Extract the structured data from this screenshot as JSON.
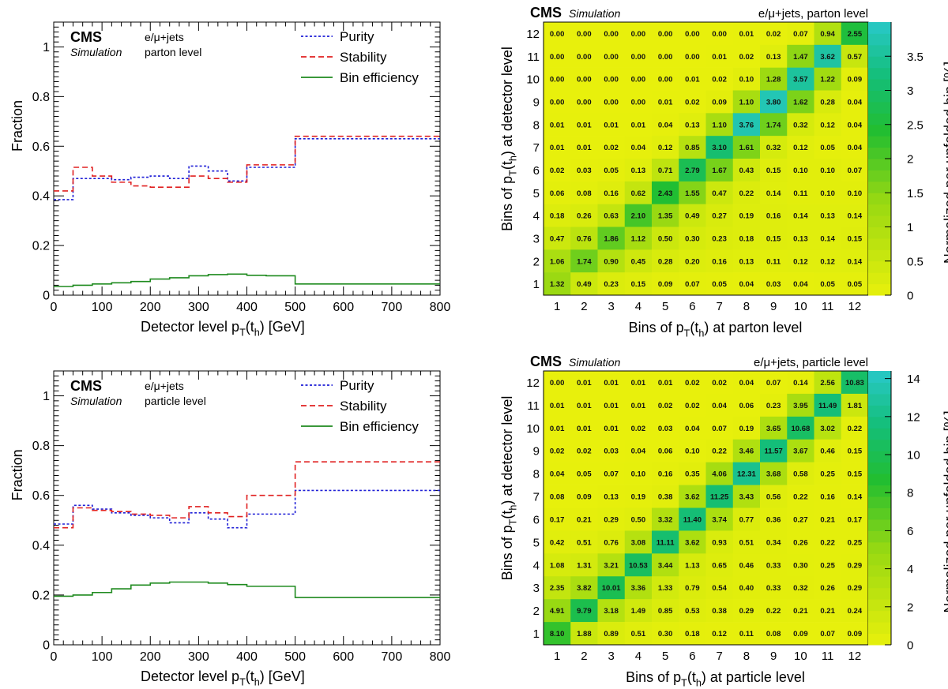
{
  "chart_data": [
    {
      "id": "p1",
      "type": "line",
      "cms_label": "CMS",
      "sim_label": "Simulation",
      "info_line1": "e/μ+jets",
      "info_line2": "parton level",
      "xlabel_main": "Detector level p",
      "xlabel_sub1": "T",
      "xlabel_mid": "(t",
      "xlabel_sub2": "h",
      "xlabel_end": ") [GeV]",
      "ylabel": "Fraction",
      "xlim": [
        0,
        800
      ],
      "ylim": [
        0,
        1.1
      ],
      "x_ticks": [
        "0",
        "100",
        "200",
        "300",
        "400",
        "500",
        "600",
        "700",
        "800"
      ],
      "y_ticks": [
        "0",
        "0.2",
        "0.4",
        "0.6",
        "0.8",
        "1"
      ],
      "bin_edges": [
        0,
        40,
        80,
        120,
        160,
        200,
        240,
        280,
        320,
        360,
        400,
        440,
        500,
        800
      ],
      "series": [
        {
          "name": "Purity",
          "color": "#1f1fd6",
          "dash": "3,2.5",
          "values": [
            0.385,
            0.47,
            0.47,
            0.465,
            0.475,
            0.48,
            0.47,
            0.52,
            0.5,
            0.46,
            0.515,
            0.515,
            0.63
          ]
        },
        {
          "name": "Stability",
          "color": "#e02020",
          "dash": "7,4",
          "values": [
            0.42,
            0.515,
            0.48,
            0.455,
            0.44,
            0.435,
            0.435,
            0.48,
            0.47,
            0.455,
            0.525,
            0.525,
            0.64
          ]
        },
        {
          "name": "Bin efficiency",
          "color": "#1e8a1e",
          "dash": "",
          "values": [
            0.035,
            0.04,
            0.045,
            0.05,
            0.055,
            0.065,
            0.07,
            0.078,
            0.083,
            0.085,
            0.08,
            0.078,
            0.045
          ]
        }
      ]
    },
    {
      "id": "p2",
      "type": "line",
      "cms_label": "CMS",
      "sim_label": "Simulation",
      "info_line1": "e/μ+jets",
      "info_line2": "particle level",
      "xlabel_main": "Detector level p",
      "xlabel_sub1": "T",
      "xlabel_mid": "(t",
      "xlabel_sub2": "h",
      "xlabel_end": ") [GeV]",
      "ylabel": "Fraction",
      "xlim": [
        0,
        800
      ],
      "ylim": [
        0,
        1.1
      ],
      "x_ticks": [
        "0",
        "100",
        "200",
        "300",
        "400",
        "500",
        "600",
        "700",
        "800"
      ],
      "y_ticks": [
        "0",
        "0.2",
        "0.4",
        "0.6",
        "0.8",
        "1"
      ],
      "bin_edges": [
        0,
        40,
        80,
        120,
        160,
        200,
        240,
        280,
        320,
        360,
        400,
        440,
        500,
        800
      ],
      "series": [
        {
          "name": "Purity",
          "color": "#1f1fd6",
          "dash": "3,2.5",
          "values": [
            0.485,
            0.56,
            0.545,
            0.53,
            0.52,
            0.51,
            0.49,
            0.53,
            0.505,
            0.47,
            0.525,
            0.525,
            0.62
          ]
        },
        {
          "name": "Stability",
          "color": "#e02020",
          "dash": "7,4",
          "values": [
            0.47,
            0.55,
            0.54,
            0.535,
            0.525,
            0.52,
            0.51,
            0.555,
            0.53,
            0.515,
            0.6,
            0.6,
            0.735
          ]
        },
        {
          "name": "Bin efficiency",
          "color": "#1e8a1e",
          "dash": "",
          "values": [
            0.195,
            0.2,
            0.21,
            0.225,
            0.24,
            0.248,
            0.252,
            0.252,
            0.248,
            0.242,
            0.235,
            0.235,
            0.19
          ]
        }
      ]
    },
    {
      "id": "h1",
      "type": "heatmap",
      "cms_label": "CMS",
      "sim_label": "Simulation",
      "info": "e/μ+jets, parton level",
      "xlabel_main": "Bins of p",
      "xlabel_sub1": "T",
      "xlabel_mid": "(t",
      "xlabel_sub2": "h",
      "xlabel_end": ") at parton level",
      "ylabel_main": "Bins of p",
      "ylabel_sub1": "T",
      "ylabel_mid": "(t",
      "ylabel_sub2": "h",
      "ylabel_end": ") at detector level",
      "zlabel": "Normalized per unfolded bin [%]",
      "zmax": 4.0,
      "z_ticks": [
        {
          "v": 0,
          "t": "0"
        },
        {
          "v": 0.5,
          "t": "0.5"
        },
        {
          "v": 1,
          "t": "1"
        },
        {
          "v": 1.5,
          "t": "1.5"
        },
        {
          "v": 2,
          "t": "2"
        },
        {
          "v": 2.5,
          "t": "2.5"
        },
        {
          "v": 3,
          "t": "3"
        },
        {
          "v": 3.5,
          "t": "3.5"
        }
      ],
      "bins": [
        "1",
        "2",
        "3",
        "4",
        "5",
        "6",
        "7",
        "8",
        "9",
        "10",
        "11",
        "12"
      ],
      "matrix_rows_top_to_bottom": [
        [
          "0.00",
          "0.00",
          "0.00",
          "0.00",
          "0.00",
          "0.00",
          "0.00",
          "0.01",
          "0.02",
          "0.07",
          "0.94",
          "2.55"
        ],
        [
          "0.00",
          "0.00",
          "0.00",
          "0.00",
          "0.00",
          "0.00",
          "0.01",
          "0.02",
          "0.13",
          "1.47",
          "3.62",
          "0.57"
        ],
        [
          "0.00",
          "0.00",
          "0.00",
          "0.00",
          "0.00",
          "0.01",
          "0.02",
          "0.10",
          "1.28",
          "3.57",
          "1.22",
          "0.09"
        ],
        [
          "0.00",
          "0.00",
          "0.00",
          "0.00",
          "0.01",
          "0.02",
          "0.09",
          "1.10",
          "3.80",
          "1.62",
          "0.28",
          "0.04"
        ],
        [
          "0.01",
          "0.01",
          "0.01",
          "0.01",
          "0.04",
          "0.13",
          "1.10",
          "3.76",
          "1.74",
          "0.32",
          "0.12",
          "0.04"
        ],
        [
          "0.01",
          "0.01",
          "0.02",
          "0.04",
          "0.12",
          "0.85",
          "3.10",
          "1.61",
          "0.32",
          "0.12",
          "0.05",
          "0.04"
        ],
        [
          "0.02",
          "0.03",
          "0.05",
          "0.13",
          "0.71",
          "2.79",
          "1.67",
          "0.43",
          "0.15",
          "0.10",
          "0.10",
          "0.07"
        ],
        [
          "0.06",
          "0.08",
          "0.16",
          "0.62",
          "2.43",
          "1.55",
          "0.47",
          "0.22",
          "0.14",
          "0.11",
          "0.10",
          "0.10"
        ],
        [
          "0.18",
          "0.26",
          "0.63",
          "2.10",
          "1.35",
          "0.49",
          "0.27",
          "0.19",
          "0.16",
          "0.14",
          "0.13",
          "0.14"
        ],
        [
          "0.47",
          "0.76",
          "1.86",
          "1.12",
          "0.50",
          "0.30",
          "0.23",
          "0.18",
          "0.15",
          "0.13",
          "0.14",
          "0.15"
        ],
        [
          "1.06",
          "1.74",
          "0.90",
          "0.45",
          "0.28",
          "0.20",
          "0.16",
          "0.13",
          "0.11",
          "0.12",
          "0.12",
          "0.14"
        ],
        [
          "1.32",
          "0.49",
          "0.23",
          "0.15",
          "0.09",
          "0.07",
          "0.05",
          "0.04",
          "0.03",
          "0.04",
          "0.05",
          "0.05"
        ]
      ]
    },
    {
      "id": "h2",
      "type": "heatmap",
      "cms_label": "CMS",
      "sim_label": "Simulation",
      "info": "e/μ+jets, particle level",
      "xlabel_main": "Bins of p",
      "xlabel_sub1": "T",
      "xlabel_mid": "(t",
      "xlabel_sub2": "h",
      "xlabel_end": ") at particle level",
      "ylabel_main": "Bins of p",
      "ylabel_sub1": "T",
      "ylabel_mid": "(t",
      "ylabel_sub2": "h",
      "ylabel_end": ") at detector level",
      "zlabel": "Normalized per unfolded bin [%]",
      "zmax": 14.4,
      "z_ticks": [
        {
          "v": 0,
          "t": "0"
        },
        {
          "v": 2,
          "t": "2"
        },
        {
          "v": 4,
          "t": "4"
        },
        {
          "v": 6,
          "t": "6"
        },
        {
          "v": 8,
          "t": "8"
        },
        {
          "v": 10,
          "t": "10"
        },
        {
          "v": 12,
          "t": "12"
        },
        {
          "v": 14,
          "t": "14"
        }
      ],
      "bins": [
        "1",
        "2",
        "3",
        "4",
        "5",
        "6",
        "7",
        "8",
        "9",
        "10",
        "11",
        "12"
      ],
      "matrix_rows_top_to_bottom": [
        [
          "0.00",
          "0.01",
          "0.01",
          "0.01",
          "0.01",
          "0.02",
          "0.02",
          "0.04",
          "0.07",
          "0.14",
          "2.56",
          "10.83"
        ],
        [
          "0.01",
          "0.01",
          "0.01",
          "0.01",
          "0.02",
          "0.02",
          "0.04",
          "0.06",
          "0.23",
          "3.95",
          "11.49",
          "1.81"
        ],
        [
          "0.01",
          "0.01",
          "0.01",
          "0.02",
          "0.03",
          "0.04",
          "0.07",
          "0.19",
          "3.65",
          "10.68",
          "3.02",
          "0.22"
        ],
        [
          "0.02",
          "0.02",
          "0.03",
          "0.04",
          "0.06",
          "0.10",
          "0.22",
          "3.46",
          "11.57",
          "3.67",
          "0.46",
          "0.15"
        ],
        [
          "0.04",
          "0.05",
          "0.07",
          "0.10",
          "0.16",
          "0.35",
          "4.06",
          "12.31",
          "3.68",
          "0.58",
          "0.25",
          "0.15"
        ],
        [
          "0.08",
          "0.09",
          "0.13",
          "0.19",
          "0.38",
          "3.62",
          "11.25",
          "3.43",
          "0.56",
          "0.22",
          "0.16",
          "0.14"
        ],
        [
          "0.17",
          "0.21",
          "0.29",
          "0.50",
          "3.32",
          "11.40",
          "3.74",
          "0.77",
          "0.36",
          "0.27",
          "0.21",
          "0.17"
        ],
        [
          "0.42",
          "0.51",
          "0.76",
          "3.08",
          "11.11",
          "3.62",
          "0.93",
          "0.51",
          "0.34",
          "0.26",
          "0.22",
          "0.25"
        ],
        [
          "1.08",
          "1.31",
          "3.21",
          "10.53",
          "3.44",
          "1.13",
          "0.65",
          "0.46",
          "0.33",
          "0.30",
          "0.25",
          "0.29"
        ],
        [
          "2.35",
          "3.82",
          "10.01",
          "3.36",
          "1.33",
          "0.79",
          "0.54",
          "0.40",
          "0.33",
          "0.32",
          "0.26",
          "0.29"
        ],
        [
          "4.91",
          "9.79",
          "3.18",
          "1.49",
          "0.85",
          "0.53",
          "0.38",
          "0.29",
          "0.22",
          "0.21",
          "0.21",
          "0.24"
        ],
        [
          "8.10",
          "1.88",
          "0.89",
          "0.51",
          "0.30",
          "0.18",
          "0.12",
          "0.11",
          "0.08",
          "0.09",
          "0.07",
          "0.09"
        ]
      ]
    }
  ]
}
